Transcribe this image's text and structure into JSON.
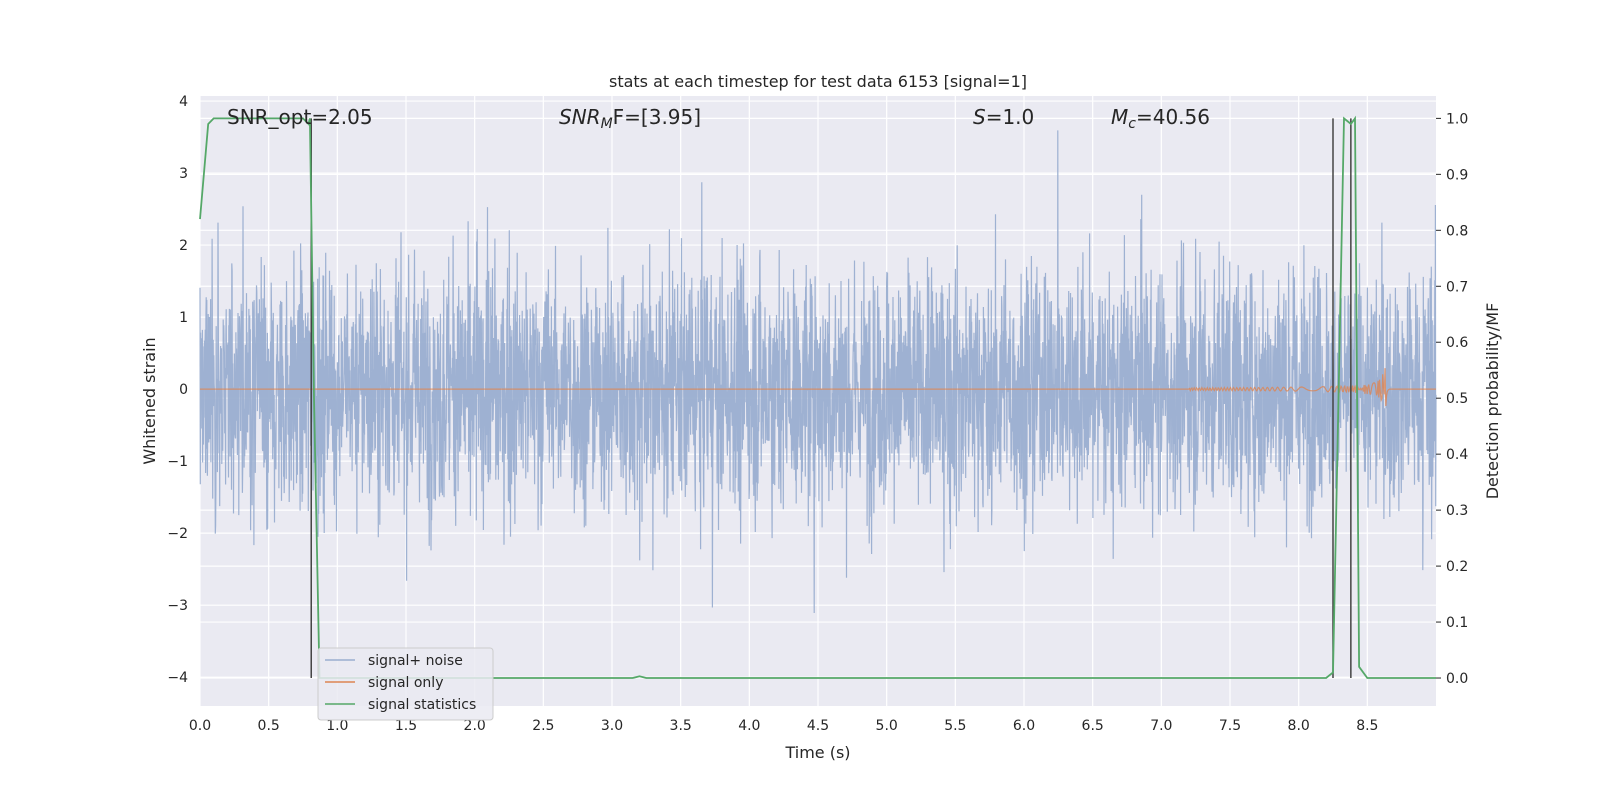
{
  "chart_data": {
    "type": "line",
    "title": "stats at each timestep for test data 6153 [signal=1]",
    "xlabel": "Time (s)",
    "ylabel": "Whitened strain",
    "y2label": "Detection probability/MF",
    "xlim": [
      0.0,
      9.0
    ],
    "ylim": [
      -4.4,
      4.07
    ],
    "y2lim": [
      -0.05,
      1.04
    ],
    "xticks": [
      "0.0",
      "0.5",
      "1.0",
      "1.5",
      "2.0",
      "2.5",
      "3.0",
      "3.5",
      "4.0",
      "4.5",
      "5.0",
      "5.5",
      "6.0",
      "6.5",
      "7.0",
      "7.5",
      "8.0",
      "8.5"
    ],
    "yticks": [
      "4",
      "3",
      "2",
      "1",
      "0",
      "−1",
      "−2",
      "−3",
      "−4"
    ],
    "y2ticks": [
      "1.0",
      "0.9",
      "0.8",
      "0.7",
      "0.6",
      "0.5",
      "0.4",
      "0.3",
      "0.2",
      "0.1",
      "0.0"
    ],
    "grid": true,
    "legend_position": "lower-left",
    "annotations": {
      "snr_opt": "SNR_opt=2.05",
      "snr_mf_base": "SNR",
      "snr_mf_sub": "M",
      "snr_mf_tail": "F=[3.95]",
      "s_var": "S",
      "s_tail": "=1.0",
      "mc_var": "M",
      "mc_sub": "c",
      "mc_tail": "=40.56"
    },
    "series": [
      {
        "name": "signal+ noise",
        "color": "#9aaed0",
        "description_values": "dense noise, bulk amplitude about ±2, peaks near 3.6 and −4"
      },
      {
        "name": "signal only",
        "color": "#dd8452",
        "chirp": {
          "start_s": 7.2,
          "peak_s": 8.63,
          "peak_amplitude": 0.5
        }
      },
      {
        "name": "signal statistics",
        "color": "#55a868",
        "axis": "right",
        "x": [
          0.0,
          0.06,
          0.1,
          0.2,
          0.75,
          0.79,
          0.8,
          0.83,
          0.87,
          0.9,
          3.15,
          3.2,
          3.25,
          8.2,
          8.25,
          8.29,
          8.33,
          8.38,
          8.41,
          8.44,
          8.5,
          9.0
        ],
        "y": [
          0.82,
          0.99,
          1.0,
          1.0,
          1.0,
          0.99,
          1.0,
          0.5,
          0.0,
          0.0,
          0.0,
          0.003,
          0.0,
          0.0,
          0.01,
          0.5,
          1.0,
          0.99,
          1.0,
          0.02,
          0.0,
          0.0
        ]
      }
    ],
    "vertical_lines": [
      0.81,
      8.25,
      8.38
    ],
    "colors": {
      "plot_background": "#eaeaf2",
      "grid": "#ffffff",
      "vertical_line": "#444444"
    }
  }
}
